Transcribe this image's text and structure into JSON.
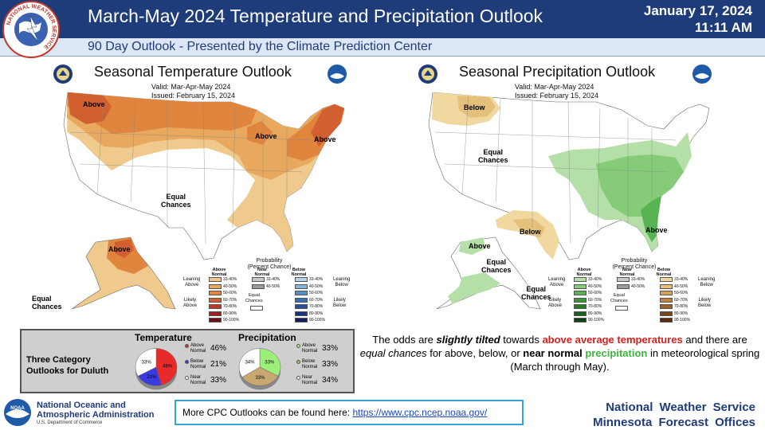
{
  "header": {
    "title": "March-May 2024 Temperature and Precipitation Outlook",
    "date": "January 17, 2024",
    "time": "11:11 AM",
    "subtitle": "90 Day Outlook - Presented by the Climate Prediction Center"
  },
  "logos": {
    "nws_text": "NATIONAL WEATHER SERVICE",
    "noaa_mark": "NOAA"
  },
  "temp_map": {
    "title": "Seasonal Temperature Outlook",
    "valid": "Valid:  Mar-Apr-May 2024",
    "issued": "Issued:  February 15, 2024",
    "labels": {
      "above_nw": "Above",
      "above_mw": "Above",
      "above_ne": "Above",
      "equal": "Equal\nChances",
      "above_ak": "Above",
      "equal_ak": "Equal\nChances"
    },
    "legend": {
      "heading": "Probability\n(Percent Chance)",
      "col_above": "Above\nNormal",
      "col_near": "Near\nNormal",
      "col_below": "Below\nNormal",
      "leaning_left": "Leaning\nAbove",
      "likely_left": "Likely\nAbove",
      "leaning_right": "Leaning\nBelow",
      "likely_right": "Likely\nBelow",
      "equal": "Equal\nChances",
      "ranges": [
        "33-40%",
        "40-50%",
        "50-60%",
        "60-70%",
        "70-80%",
        "80-90%",
        "90-100%"
      ],
      "near_ranges": [
        "33-40%",
        "40-50%"
      ],
      "above_colors": [
        "#f0c98c",
        "#e8a85e",
        "#e0853e",
        "#d25f30",
        "#c03a2a",
        "#a01e22",
        "#6e1018"
      ],
      "below_colors": [
        "#b6d4ec",
        "#86b2dc",
        "#5a8ec8",
        "#3a6db4",
        "#284c9a",
        "#1c327c",
        "#121e5a"
      ],
      "near_colors": [
        "#c8c8c8",
        "#9a9a9a"
      ]
    }
  },
  "precip_map": {
    "title": "Seasonal Precipitation Outlook",
    "valid": "Valid:  Mar-Apr-May 2024",
    "issued": "Issued:  February 15, 2024",
    "labels": {
      "below_nw": "Below",
      "equal": "Equal\nChances",
      "below_s": "Below",
      "above_se": "Above",
      "above_ak": "Above",
      "equal_ak": "Equal\nChances",
      "equal_ak2": "Equal\nChances"
    },
    "legend": {
      "heading": "Probability\n(Percent Chance)",
      "col_above": "Above\nNormal",
      "col_near": "Near\nNormal",
      "col_below": "Below\nNormal",
      "leaning_left": "Leaning\nAbove",
      "likely_left": "Likely\nAbove",
      "leaning_right": "Leaning\nBelow",
      "likely_right": "Likely\nBelow",
      "equal": "Equal\nChances",
      "ranges": [
        "33-40%",
        "40-50%",
        "50-60%",
        "60-70%",
        "70-80%",
        "80-90%",
        "90-100%"
      ],
      "near_ranges": [
        "33-40%",
        "40-50%"
      ],
      "above_colors": [
        "#b4e0a8",
        "#86cc78",
        "#58b452",
        "#3c963a",
        "#2a7a2a",
        "#1c5e1e",
        "#0e4212"
      ],
      "below_colors": [
        "#f0d8a0",
        "#e4c07a",
        "#d4a25a",
        "#bc8240",
        "#9c622e",
        "#7a4422",
        "#5a2c16"
      ],
      "near_colors": [
        "#c8c8c8",
        "#9a9a9a"
      ]
    }
  },
  "duluth": {
    "label": "Three Category\nOutlooks for Duluth",
    "temperature": {
      "title": "Temperature",
      "items": [
        {
          "label": "Above\nNormal",
          "value": "46%",
          "color": "#e82a2a"
        },
        {
          "label": "Below\nNormal",
          "value": "21%",
          "color": "#3a3ae0"
        },
        {
          "label": "Near\nNormal",
          "value": "33%",
          "color": "#ffffff"
        }
      ],
      "pie": [
        46,
        21,
        33
      ],
      "pie_labels": [
        "46%",
        "21%",
        "33%"
      ]
    },
    "precipitation": {
      "title": "Precipitation",
      "items": [
        {
          "label": "Above\nNormal",
          "value": "33%",
          "color": "#9cf07a"
        },
        {
          "label": "Below\nNormal",
          "value": "33%",
          "color": "#c8a870"
        },
        {
          "label": "Near\nNormal",
          "value": "34%",
          "color": "#ffffff"
        }
      ],
      "pie": [
        33,
        33,
        34
      ],
      "pie_labels": [
        "33%",
        "33%",
        "34%"
      ]
    }
  },
  "summary": {
    "p1": "The odds are ",
    "p2": "slightly tilted",
    "p3": " towards ",
    "p4": "above average temperatures",
    "p5": " and there are ",
    "p6": "equal chances",
    "p7": " for above, below, or ",
    "p8": "near normal",
    "p9": " ",
    "p10": "precipitation",
    "p11": " in meteorological spring (March through May)."
  },
  "footer": {
    "noaa_line1": "National Oceanic and",
    "noaa_line2": "Atmospheric Administration",
    "noaa_sub": "U.S. Department of Commerce",
    "cpc_text": "More CPC Outlooks can be found here: ",
    "cpc_link": "https://www.cpc.ncep.noaa.gov/",
    "nws_line1": "National Weather Service",
    "nws_line2": "Minnesota Forecast Offices"
  },
  "icons": [
    "nws-logo-icon",
    "commerce-seal-icon",
    "noaa-logo-icon"
  ]
}
